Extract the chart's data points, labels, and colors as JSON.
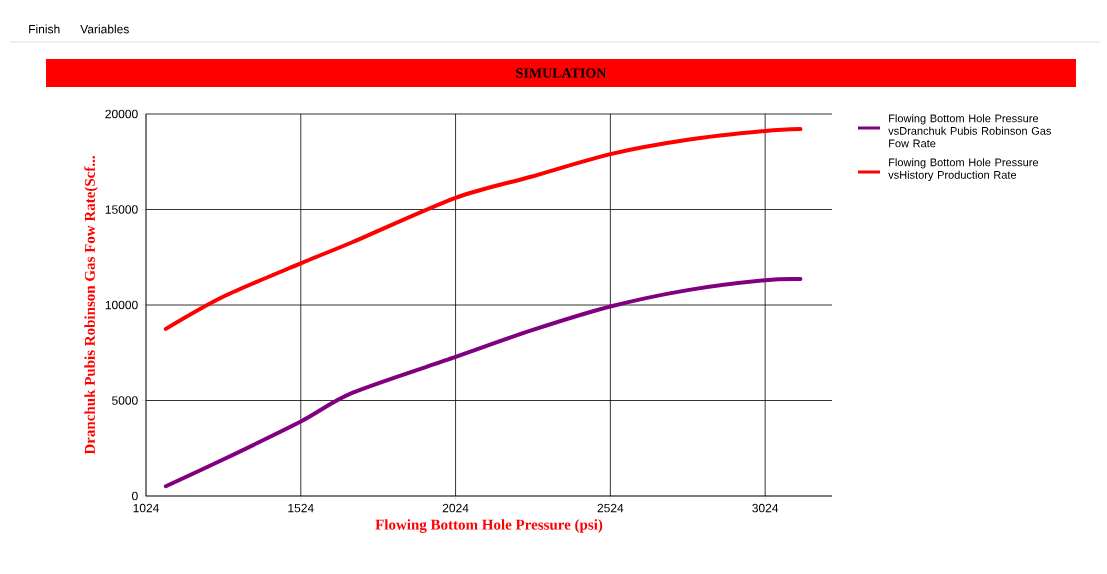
{
  "chart_data": {
    "type": "line",
    "title": "SIMULATION",
    "xlabel": "Flowing Bottom Hole Pressure (psi)",
    "ylabel": "Dranchuk Pubis Robinson Gas Fow Rate(Scf...",
    "annotations": [
      "Finish",
      "Variables"
    ],
    "xlim": [
      1024,
      3240
    ],
    "ylim": [
      0,
      20000
    ],
    "xticks": [
      1024,
      1524,
      2024,
      2524,
      3024
    ],
    "yticks": [
      0,
      5000,
      10000,
      15000,
      20000
    ],
    "grid": true,
    "legend": "top right",
    "series": [
      {
        "name": "Flowing Bottom Hole Pressure vsDranchuk Pubis Robinson Gas Fow Rate",
        "color": "#800080",
        "x": [
          1088,
          1273,
          1524,
          1692,
          2024,
          2271,
          2524,
          2774,
          3024,
          3138
        ],
        "values": [
          510,
          1910,
          3900,
          5410,
          7280,
          8680,
          9920,
          10780,
          11300,
          11360
        ]
      },
      {
        "name": "Flowing Bottom Hole Pressure vsHistory Production Rate",
        "color": "#ff0000",
        "x": [
          1088,
          1273,
          1524,
          1692,
          2024,
          2271,
          2524,
          2774,
          3024,
          3138
        ],
        "values": [
          8750,
          10430,
          12180,
          13300,
          15610,
          16730,
          17900,
          18650,
          19110,
          19210
        ]
      }
    ]
  }
}
